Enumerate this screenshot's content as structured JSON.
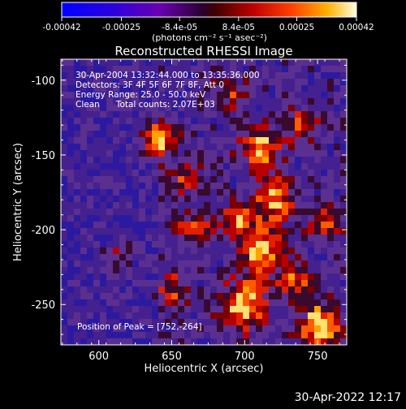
{
  "colorbar": {
    "tick_labels": [
      "-0.00042",
      "-0.00025",
      "-8.4e-05",
      "8.4e-05",
      "0.00025",
      "0.00042"
    ],
    "tick_values": [
      -0.00042,
      -0.00025,
      -8.4e-05,
      8.4e-05,
      0.00025,
      0.00042
    ],
    "range": [
      -0.00042,
      0.00042
    ],
    "unit_label": "(photons cm⁻² s⁻¹ asec⁻²)"
  },
  "chart_data": {
    "type": "heatmap",
    "title": "Reconstructed RHESSI Image",
    "xlabel": "Heliocentric X (arcsec)",
    "ylabel": "Heliocentric Y (arcsec)",
    "xlim": [
      574,
      770
    ],
    "ylim": [
      -277,
      -86
    ],
    "x_ticks": [
      600,
      650,
      700,
      750
    ],
    "y_ticks": [
      -100,
      -150,
      -200,
      -250
    ],
    "x_tick_labels": [
      "600",
      "650",
      "700",
      "750"
    ],
    "y_tick_labels": [
      "-100",
      "-150",
      "-200",
      "-250"
    ],
    "annotations": [
      "30-Apr-2004 13:32:44.000 to 13:35:36.000",
      "Detectors: 3F 4F 5F 6F 7F 8F, Att 0",
      "Energy Range: 25.0 - 50.0 keV",
      "Clean      Total counts: 2.07E+03"
    ],
    "peak_label": "Position of Peak = [752,-264]",
    "peak": [
      752,
      -264
    ],
    "grid": false
  },
  "footer": {
    "timestamp": "30-Apr-2022 12:17"
  }
}
